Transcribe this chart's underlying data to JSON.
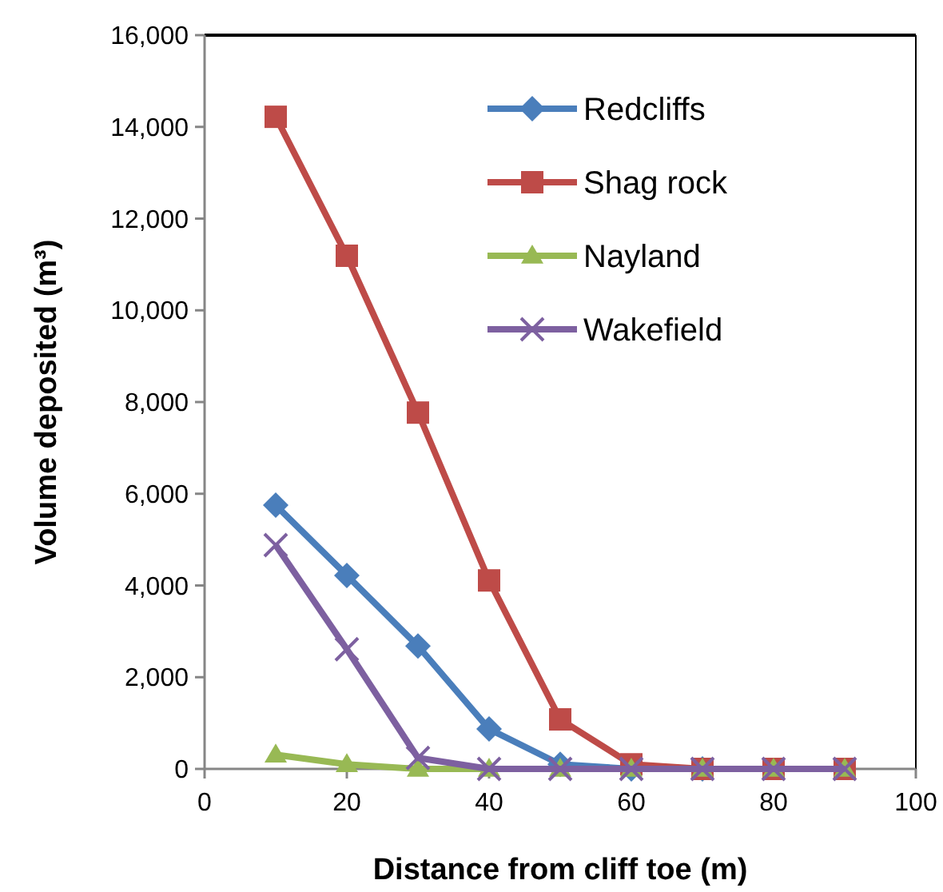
{
  "chart_data": {
    "type": "line",
    "xlabel": "Distance from cliff toe (m)",
    "ylabel": "Volume deposited (m³)",
    "x": [
      10,
      20,
      30,
      40,
      50,
      60,
      70,
      80,
      90
    ],
    "xlim": [
      0,
      100
    ],
    "xticks": [
      0,
      20,
      40,
      60,
      80,
      100
    ],
    "ylim": [
      0,
      16000
    ],
    "yticks": [
      {
        "value": 0,
        "label": "0"
      },
      {
        "value": 2000,
        "label": "2,000"
      },
      {
        "value": 4000,
        "label": "4,000"
      },
      {
        "value": 6000,
        "label": "6,000"
      },
      {
        "value": 8000,
        "label": "8,000"
      },
      {
        "value": 10000,
        "label": "10,000"
      },
      {
        "value": 12000,
        "label": "12,000"
      },
      {
        "value": 14000,
        "label": "14,000"
      },
      {
        "value": 16000,
        "label": "16,000"
      }
    ],
    "legend": "top right",
    "grid": false,
    "series": [
      {
        "name": "Redcliffs",
        "color": "#4a7ebb",
        "marker": "diamond",
        "values": [
          5750,
          4220,
          2680,
          870,
          100,
          0,
          0,
          null,
          null
        ]
      },
      {
        "name": "Shag rock",
        "color": "#be4b48",
        "marker": "square",
        "values": [
          14220,
          11190,
          7770,
          4110,
          1080,
          100,
          0,
          0,
          0
        ]
      },
      {
        "name": "Nayland",
        "color": "#98b954",
        "marker": "triangle",
        "values": [
          310,
          100,
          0,
          0,
          0,
          0,
          0,
          0,
          0
        ]
      },
      {
        "name": "Wakefield",
        "color": "#7d60a0",
        "marker": "cross",
        "values": [
          4880,
          2610,
          240,
          0,
          0,
          0,
          0,
          0,
          0
        ]
      }
    ]
  }
}
